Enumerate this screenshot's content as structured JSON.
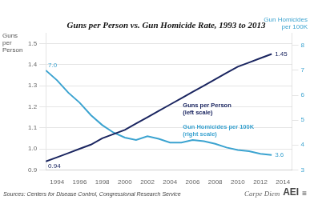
{
  "chart_data": {
    "type": "line",
    "title": "Guns per Person vs. Gun Homicide Rate, 1993 to 2013",
    "x": [
      1993,
      1994,
      1995,
      1996,
      1997,
      1998,
      1999,
      2000,
      2001,
      2002,
      2003,
      2004,
      2005,
      2006,
      2007,
      2008,
      2009,
      2010,
      2011,
      2012,
      2013
    ],
    "xlim": [
      1993,
      2014.8
    ],
    "xticks": [
      1994,
      1996,
      1998,
      2000,
      2002,
      2004,
      2006,
      2008,
      2010,
      2012,
      2014
    ],
    "ylim": [
      0.9,
      1.55
    ],
    "yticks": [
      0.9,
      {
        "value": 1.0,
        "label": "1.0"
      },
      1.1,
      1.2,
      1.3,
      1.4,
      1.5
    ],
    "y2lim": [
      3.0,
      8.5
    ],
    "y2ticks": [
      3,
      4,
      5,
      6,
      7,
      8
    ],
    "ylabel": "Guns\nper\nPerson",
    "y2label": "Gun Homicides\nper 100K",
    "grid": "y",
    "series": [
      {
        "name": "Guns per Person\n(left scale)",
        "color": "#1a2560",
        "values": [
          0.94,
          0.96,
          0.98,
          1.0,
          1.02,
          1.05,
          1.07,
          1.09,
          1.12,
          1.15,
          1.18,
          1.21,
          1.24,
          1.27,
          1.3,
          1.33,
          1.36,
          1.39,
          1.41,
          1.43,
          1.45
        ]
      },
      {
        "name": "Gun Homicides per 100K\n(right scale)",
        "color": "#3ba3d0",
        "axis": "y2",
        "values": [
          7.0,
          6.6,
          6.1,
          5.7,
          5.2,
          4.8,
          4.5,
          4.3,
          4.2,
          4.35,
          4.25,
          4.1,
          4.1,
          4.2,
          4.15,
          4.05,
          3.9,
          3.8,
          3.75,
          3.65,
          3.6
        ]
      }
    ],
    "annotations": [
      {
        "text": "7.0",
        "x": 1993,
        "y": 7.0,
        "axis": "y2"
      },
      {
        "text": "0.94",
        "x": 1993,
        "y": 0.94
      },
      {
        "text": "1.45",
        "x": 2013,
        "y": 1.45
      },
      {
        "text": "3.6",
        "x": 2013,
        "y": 3.6,
        "axis": "y2"
      }
    ],
    "source": "Sources: Centers for Disease Control, Congressional Research Service",
    "footer": [
      "Carpe Diem",
      "AEI",
      "≡"
    ]
  }
}
